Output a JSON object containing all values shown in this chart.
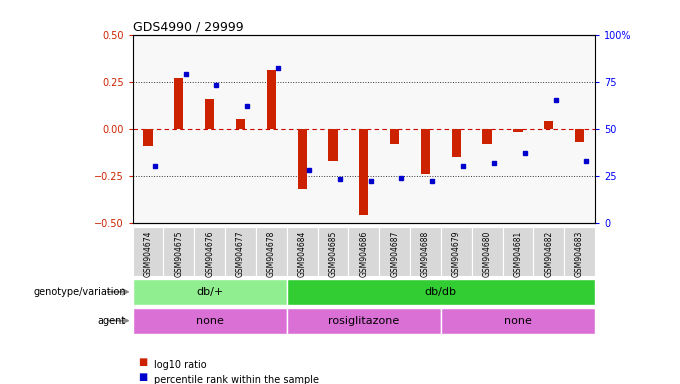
{
  "title": "GDS4990 / 29999",
  "samples": [
    "GSM904674",
    "GSM904675",
    "GSM904676",
    "GSM904677",
    "GSM904678",
    "GSM904684",
    "GSM904685",
    "GSM904686",
    "GSM904687",
    "GSM904688",
    "GSM904679",
    "GSM904680",
    "GSM904681",
    "GSM904682",
    "GSM904683"
  ],
  "log10_ratio": [
    -0.09,
    0.27,
    0.16,
    0.05,
    0.31,
    -0.32,
    -0.17,
    -0.46,
    -0.08,
    -0.24,
    -0.15,
    -0.08,
    -0.02,
    0.04,
    -0.07
  ],
  "percentile": [
    30,
    79,
    73,
    62,
    82,
    28,
    23,
    22,
    24,
    22,
    30,
    32,
    37,
    65,
    33
  ],
  "genotype_groups": [
    {
      "label": "db/+",
      "start": 0,
      "end": 5,
      "color": "#90ee90"
    },
    {
      "label": "db/db",
      "start": 5,
      "end": 15,
      "color": "#32cd32"
    }
  ],
  "agent_groups": [
    {
      "label": "none",
      "start": 0,
      "end": 5,
      "color": "#da70d6"
    },
    {
      "label": "rosiglitazone",
      "start": 5,
      "end": 10,
      "color": "#da70d6"
    },
    {
      "label": "none",
      "start": 10,
      "end": 15,
      "color": "#da70d6"
    }
  ],
  "ylim": [
    -0.5,
    0.5
  ],
  "yticks_left": [
    -0.5,
    -0.25,
    0,
    0.25,
    0.5
  ],
  "yticks_right": [
    0,
    25,
    50,
    75,
    100
  ],
  "bar_color": "#cc2200",
  "dot_color": "#0000cc",
  "zero_line_color": "#cc0000",
  "hline_color": "#333333",
  "plot_bg": "#f8f8f8",
  "legend_items": [
    "log10 ratio",
    "percentile rank within the sample"
  ]
}
